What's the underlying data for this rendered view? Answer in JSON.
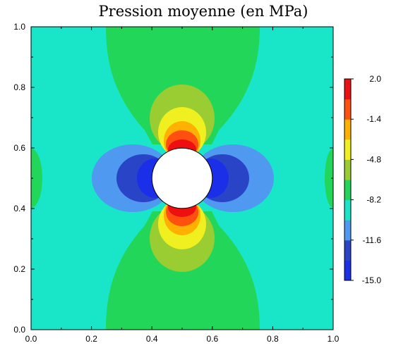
{
  "chart_data": {
    "type": "heatmap",
    "title": "Pression moyenne (en MPa)",
    "xlabel": "",
    "ylabel": "",
    "xlim": [
      0,
      1
    ],
    "ylim": [
      0,
      1
    ],
    "x_ticks": [
      "0.0",
      "0.2",
      "0.4",
      "0.6",
      "0.8",
      "1.0"
    ],
    "y_ticks": [
      "0.0",
      "0.2",
      "0.4",
      "0.6",
      "0.8",
      "1.0"
    ],
    "grid": false,
    "hole": {
      "center": [
        0.5,
        0.5
      ],
      "radius": 0.1
    },
    "colorbar": {
      "min": -15.0,
      "max": 2.0,
      "tick_labels": [
        "2.0",
        "-1.4",
        "-4.8",
        "-8.2",
        "-11.6",
        "-15.0"
      ],
      "levels": [
        {
          "from": -15.0,
          "to": -13.3,
          "color": "#1c2fe8"
        },
        {
          "from": -13.3,
          "to": -11.6,
          "color": "#2a44c7"
        },
        {
          "from": -11.6,
          "to": -9.9,
          "color": "#4f9af0"
        },
        {
          "from": -9.9,
          "to": -8.2,
          "color": "#19e6c8"
        },
        {
          "from": -8.2,
          "to": -6.5,
          "color": "#22d65a"
        },
        {
          "from": -6.5,
          "to": -4.8,
          "color": "#9acd32"
        },
        {
          "from": -4.8,
          "to": -3.1,
          "color": "#f0f020"
        },
        {
          "from": -3.1,
          "to": -1.4,
          "color": "#ffb000"
        },
        {
          "from": -1.4,
          "to": 0.3,
          "color": "#ff5010"
        },
        {
          "from": 0.3,
          "to": 2.0,
          "color": "#ee1010"
        }
      ]
    }
  }
}
